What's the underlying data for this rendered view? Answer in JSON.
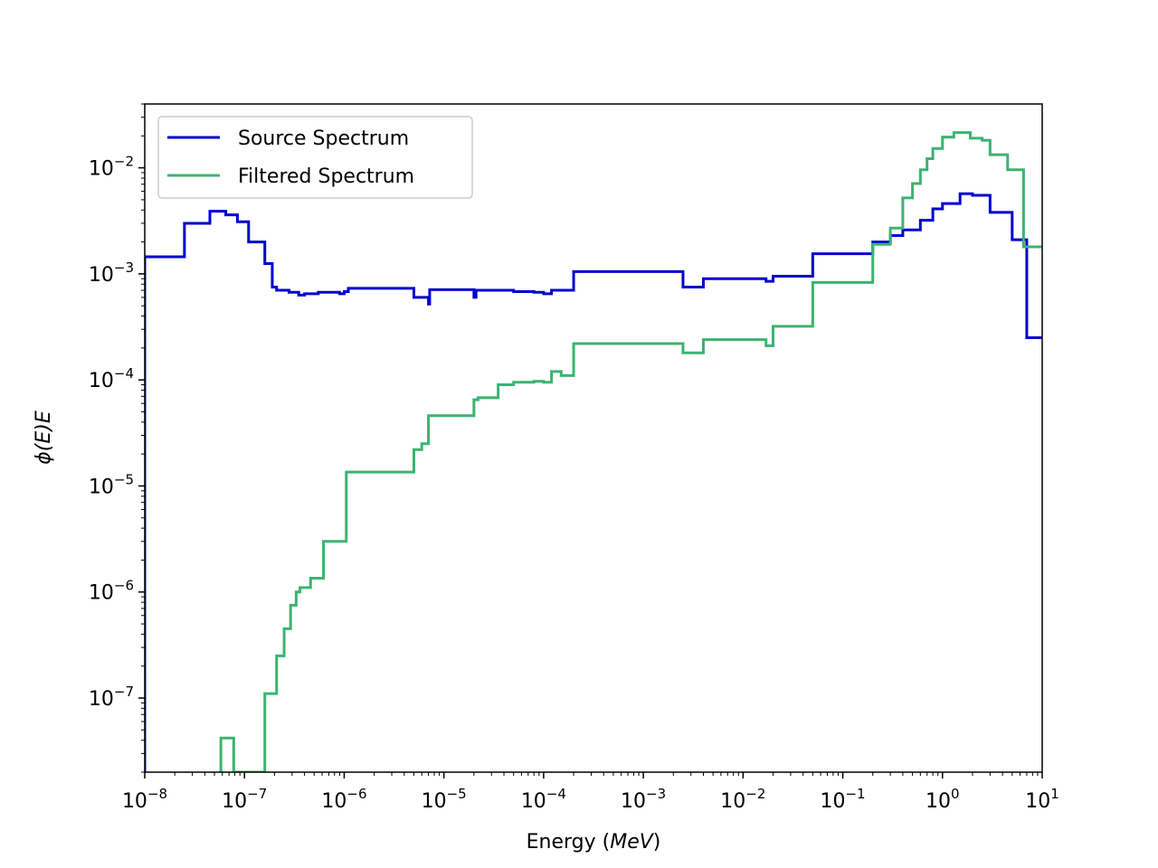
{
  "chart_data": {
    "type": "line",
    "title": "",
    "xlabel_prefix": "Energy (",
    "xlabel_italic": "MeV",
    "xlabel_suffix": ")",
    "ylabel": "ϕ(E)E",
    "xscale": "log",
    "yscale": "log",
    "xlim": [
      1e-08,
      10
    ],
    "ylim": [
      2e-08,
      0.04
    ],
    "grid": false,
    "legend_position": "top-left",
    "x_ticks": [
      {
        "base": "10",
        "exp": "−8",
        "value": 1e-08
      },
      {
        "base": "10",
        "exp": "−7",
        "value": 1e-07
      },
      {
        "base": "10",
        "exp": "−6",
        "value": 1e-06
      },
      {
        "base": "10",
        "exp": "−5",
        "value": 1e-05
      },
      {
        "base": "10",
        "exp": "−4",
        "value": 0.0001
      },
      {
        "base": "10",
        "exp": "−3",
        "value": 0.001
      },
      {
        "base": "10",
        "exp": "−2",
        "value": 0.01
      },
      {
        "base": "10",
        "exp": "−1",
        "value": 0.1
      },
      {
        "base": "10",
        "exp": "0",
        "value": 1
      },
      {
        "base": "10",
        "exp": "1",
        "value": 10
      }
    ],
    "y_ticks": [
      {
        "base": "10",
        "exp": "−7",
        "value": 1e-07
      },
      {
        "base": "10",
        "exp": "−6",
        "value": 1e-06
      },
      {
        "base": "10",
        "exp": "−5",
        "value": 1e-05
      },
      {
        "base": "10",
        "exp": "−4",
        "value": 0.0001
      },
      {
        "base": "10",
        "exp": "−3",
        "value": 0.001
      },
      {
        "base": "10",
        "exp": "−2",
        "value": 0.01
      }
    ],
    "series": [
      {
        "name": "Source Spectrum",
        "color": "#0000cc",
        "drawstyle": "steps-post",
        "x": [
          1e-08,
          2.5e-08,
          4.5e-08,
          6.5e-08,
          8.5e-08,
          1.1e-07,
          1.6e-07,
          1.9e-07,
          2.1e-07,
          2.8e-07,
          3.5e-07,
          4e-07,
          5.5e-07,
          9e-07,
          1e-06,
          1.1e-06,
          5e-06,
          7e-06,
          7.2e-06,
          2e-05,
          2.1e-05,
          5e-05,
          8e-05,
          0.0001,
          0.00012,
          0.0002,
          0.0025,
          0.004,
          0.017,
          0.02,
          0.05,
          0.2,
          0.3,
          0.4,
          0.6,
          0.8,
          1.0,
          1.5,
          2.0,
          3.0,
          5.0,
          7.0,
          10.0
        ],
        "y": [
          0.00145,
          0.003,
          0.0039,
          0.0036,
          0.0031,
          0.002,
          0.00125,
          0.00075,
          0.0007,
          0.00067,
          0.00063,
          0.00065,
          0.00067,
          0.00065,
          0.00068,
          0.00073,
          0.0006,
          0.00052,
          0.00071,
          0.0006,
          0.0007,
          0.00068,
          0.00067,
          0.00065,
          0.0007,
          0.00105,
          0.00075,
          0.0009,
          0.00085,
          0.00095,
          0.00155,
          0.002,
          0.0023,
          0.0026,
          0.0032,
          0.0041,
          0.0046,
          0.0057,
          0.0055,
          0.0038,
          0.0021,
          0.00025,
          0.00025
        ]
      },
      {
        "name": "Filtered Spectrum",
        "color": "#3cb371",
        "drawstyle": "steps-post",
        "x": [
          5.8e-08,
          7.8e-08,
          1.6e-07,
          2.1e-07,
          2.5e-07,
          2.9e-07,
          3.3e-07,
          3.6e-07,
          4.6e-07,
          6.2e-07,
          1.05e-06,
          5e-06,
          6e-06,
          7e-06,
          2e-05,
          2.2e-05,
          3.5e-05,
          5e-05,
          8e-05,
          0.0001,
          0.00012,
          0.00015,
          0.0002,
          0.0025,
          0.004,
          0.017,
          0.02,
          0.05,
          0.2,
          0.3,
          0.4,
          0.5,
          0.6,
          0.7,
          0.8,
          1.0,
          1.3,
          1.9,
          2.5,
          3.0,
          4.5,
          6.5,
          10.0
        ],
        "y": [
          4.2e-08,
          2e-08,
          1.1e-07,
          2.5e-07,
          4.5e-07,
          7.5e-07,
          1e-06,
          1.1e-06,
          1.35e-06,
          3e-06,
          1.35e-05,
          2.2e-05,
          2.5e-05,
          4.6e-05,
          6.5e-05,
          6.8e-05,
          9e-05,
          9.5e-05,
          9.7e-05,
          9.5e-05,
          0.00012,
          0.00011,
          0.00022,
          0.00018,
          0.00024,
          0.00021,
          0.00032,
          0.00083,
          0.0019,
          0.0027,
          0.0052,
          0.0071,
          0.0096,
          0.0122,
          0.0152,
          0.0195,
          0.0215,
          0.019,
          0.0182,
          0.0133,
          0.0096,
          0.0018,
          0.0018
        ]
      }
    ]
  }
}
